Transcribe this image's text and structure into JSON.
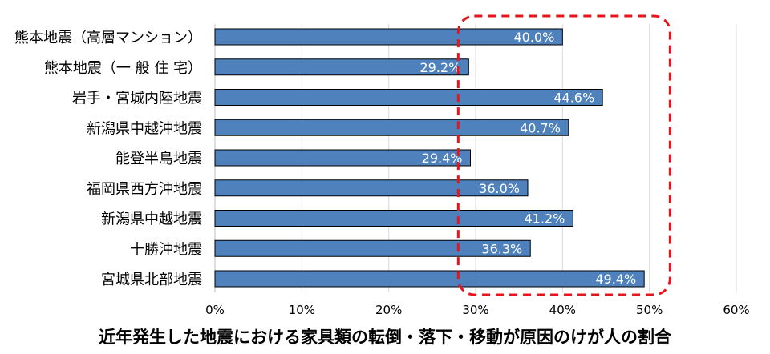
{
  "chart_data": {
    "type": "bar",
    "orientation": "horizontal",
    "title": "近年発生した地震における家具類の転倒・落下・移動が原因のけが人の割合",
    "categories": [
      "熊本地震（高層マンション）",
      "熊本地震（一 般 住 宅）",
      "岩手・宮城内陸地震",
      "新潟県中越沖地震",
      "能登半島地震",
      "福岡県西方沖地震",
      "新潟県中越地震",
      "十勝沖地震",
      "宮城県北部地震"
    ],
    "values": [
      40.0,
      29.2,
      44.6,
      40.7,
      29.4,
      36.0,
      41.2,
      36.3,
      49.4
    ],
    "data_labels": [
      "40.0%",
      "29.2%",
      "44.6%",
      "40.7%",
      "29.4%",
      "36.0%",
      "41.2%",
      "36.3%",
      "49.4%"
    ],
    "xlim": [
      0,
      60
    ],
    "x_ticks": [
      0,
      10,
      20,
      30,
      40,
      50,
      60
    ],
    "x_tick_labels": [
      "0%",
      "10%",
      "20%",
      "30%",
      "40%",
      "50%",
      "60%"
    ],
    "xlabel": "",
    "ylabel": "",
    "grid": "vertical",
    "bar_color": "#4F81BD",
    "bar_edge_color": "#000000",
    "highlight_range": [
      28,
      52
    ],
    "highlight_color": "#E8141B"
  }
}
